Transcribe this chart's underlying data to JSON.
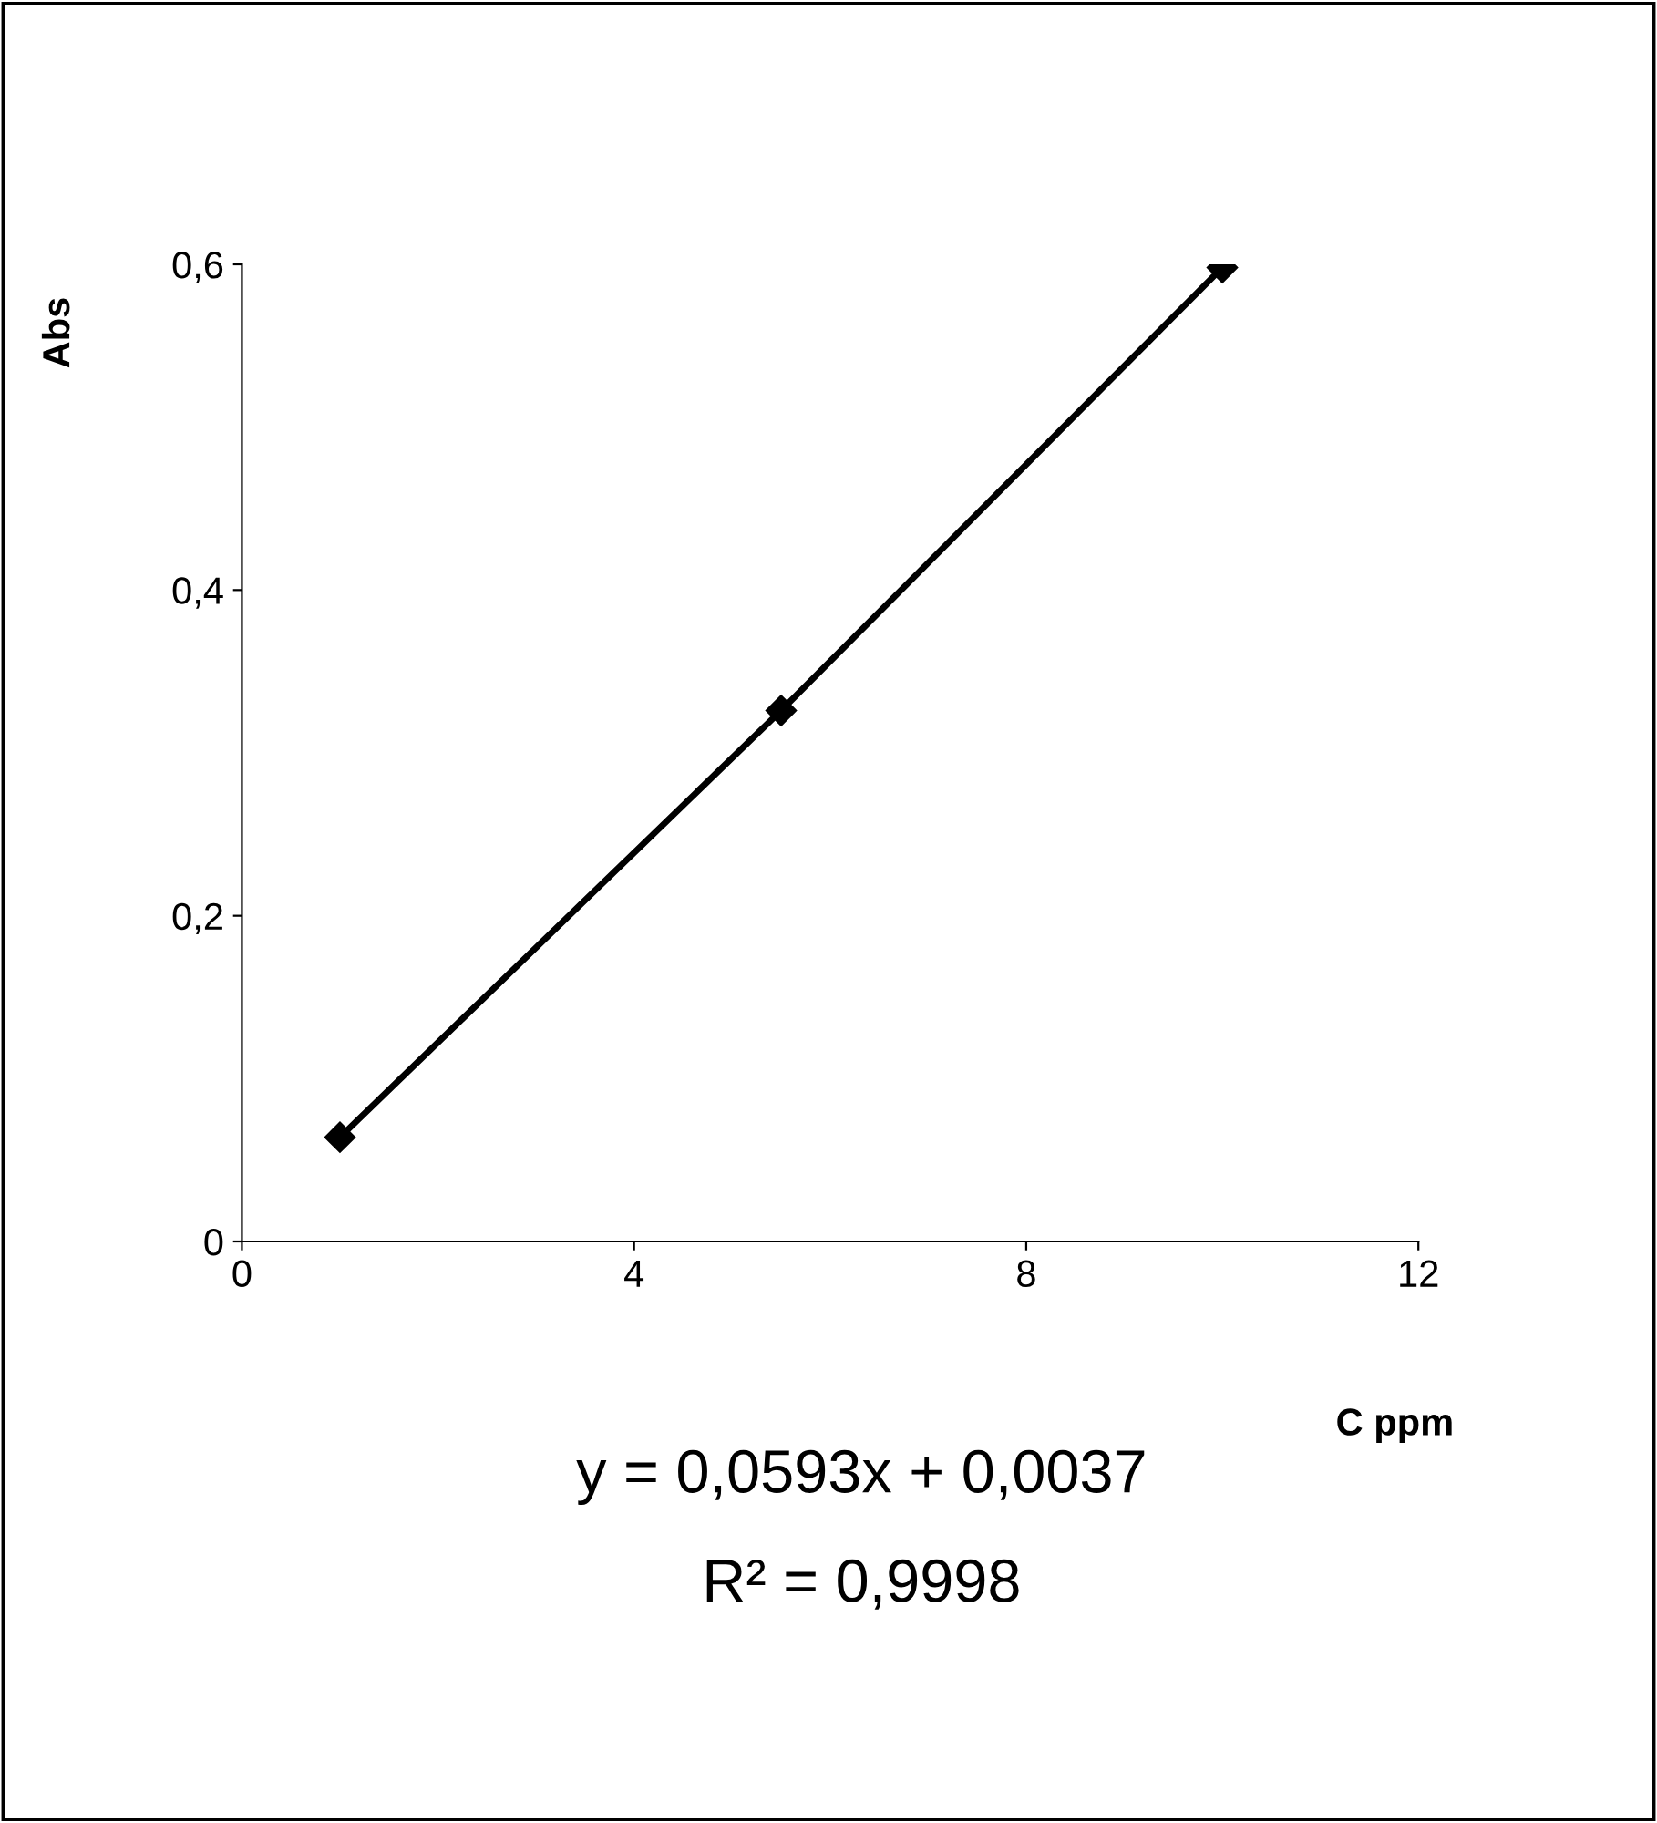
{
  "chart_data": {
    "type": "line",
    "xlabel": "C ppm",
    "ylabel": "Abs",
    "x": [
      1,
      5.5,
      10
    ],
    "series": [
      {
        "color": "#000000",
        "values": [
          0.064,
          0.326,
          0.598
        ]
      }
    ],
    "marker": "diamond",
    "line_style": "solid",
    "grid": false,
    "legend": false,
    "xlim": [
      0,
      12
    ],
    "xticks": [
      0,
      4,
      8,
      12
    ],
    "ylim": [
      0,
      0.6
    ],
    "yticks": [
      0,
      {
        "value": 0.2,
        "label": "0,2"
      },
      {
        "value": 0.4,
        "label": "0,4"
      },
      {
        "value": 0.6,
        "label": "0,6"
      }
    ],
    "annotations": [
      "y = 0,0593x + 0,0037",
      "R² = 0,9998"
    ]
  }
}
